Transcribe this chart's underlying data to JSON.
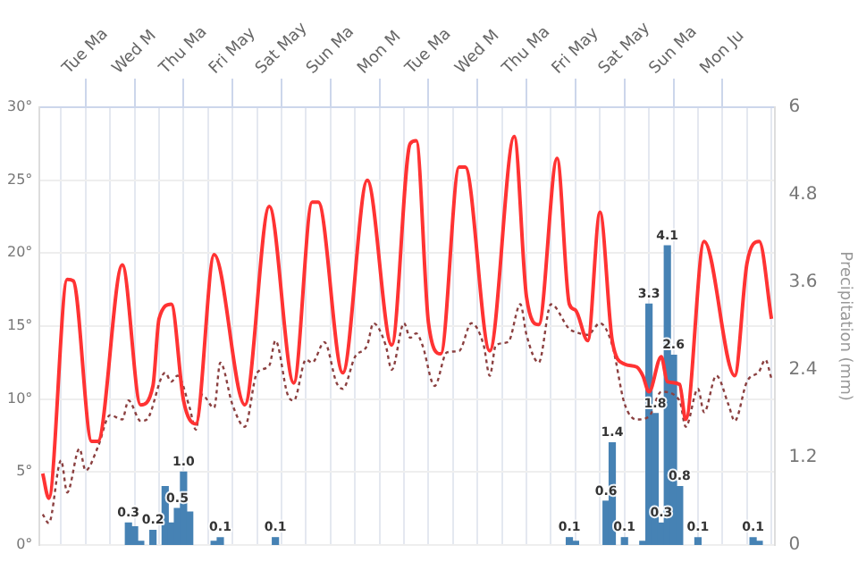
{
  "chart_data": {
    "type": "line",
    "y2label": "Precipitation (mm)",
    "grid": true,
    "legend": false,
    "marker": "none",
    "categories": [
      null,
      null,
      null,
      null,
      null,
      null,
      null,
      "Tue Ma",
      null,
      null,
      null,
      null,
      null,
      null,
      null,
      "Wed M",
      null,
      null,
      null,
      null,
      null,
      null,
      null,
      "Thu Ma",
      null,
      null,
      null,
      null,
      null,
      null,
      null,
      "Fri May",
      null,
      null,
      null,
      null,
      null,
      null,
      null,
      "Sat May",
      null,
      null,
      null,
      null,
      null,
      null,
      null,
      "Sun Ma",
      null,
      null,
      null,
      null,
      null,
      null,
      null,
      "Mon M",
      null,
      null,
      null,
      null,
      null,
      null,
      null,
      "Tue Ma",
      null,
      null,
      null,
      null,
      null,
      null,
      null,
      "Wed M",
      null,
      null,
      null,
      null,
      null,
      null,
      null,
      "Thu Ma",
      null,
      null,
      null,
      null,
      null,
      null,
      null,
      "Fri May",
      null,
      null,
      null,
      null,
      null,
      null,
      null,
      "Sat May",
      null,
      null,
      null,
      null,
      null,
      null,
      null,
      "Sun Ma",
      null,
      null,
      null,
      null,
      null,
      null,
      null,
      "Mon Ju",
      null,
      null,
      null,
      null,
      null,
      null,
      null,
      null
    ],
    "ylim": [
      0,
      30
    ],
    "yticks": [
      {
        "value": 0,
        "label": "0°"
      },
      {
        "value": 5,
        "label": "5°"
      },
      {
        "value": 10,
        "label": "10°"
      },
      {
        "value": 15,
        "label": "15°"
      },
      {
        "value": 20,
        "label": "20°"
      },
      {
        "value": 25,
        "label": "25°"
      },
      {
        "value": 30,
        "label": "30°"
      }
    ],
    "y2lim": [
      0,
      6
    ],
    "y2ticks": [
      0,
      1.2,
      2.4,
      3.6,
      4.8,
      6
    ],
    "series": [
      {
        "type": "bar",
        "axis": "y2",
        "color": "#4682b4",
        "values": [
          null,
          null,
          null,
          null,
          null,
          null,
          null,
          null,
          null,
          null,
          null,
          null,
          null,
          null,
          0.3,
          0.25,
          0.05,
          null,
          0.2,
          null,
          0.8,
          0.3,
          0.5,
          1.0,
          0.45,
          null,
          null,
          null,
          0.05,
          0.1,
          null,
          null,
          null,
          null,
          null,
          null,
          null,
          null,
          0.1,
          null,
          null,
          null,
          null,
          null,
          null,
          null,
          null,
          null,
          null,
          null,
          null,
          null,
          null,
          null,
          null,
          null,
          null,
          null,
          null,
          null,
          null,
          null,
          null,
          null,
          null,
          null,
          null,
          null,
          null,
          null,
          null,
          null,
          null,
          null,
          null,
          null,
          null,
          null,
          null,
          null,
          null,
          null,
          null,
          null,
          null,
          null,
          0.1,
          0.05,
          null,
          null,
          null,
          null,
          0.6,
          1.4,
          null,
          0.1,
          null,
          null,
          0.05,
          3.3,
          1.8,
          0.3,
          4.1,
          2.6,
          0.8,
          null,
          null,
          0.1,
          null,
          null,
          null,
          null,
          null,
          null,
          null,
          null,
          0.1,
          0.05,
          null,
          null
        ],
        "value_labels": [
          null,
          null,
          null,
          null,
          null,
          null,
          null,
          null,
          null,
          null,
          null,
          null,
          null,
          null,
          "0.3",
          null,
          null,
          null,
          "0.2",
          null,
          null,
          null,
          "0.5",
          "1.0",
          null,
          null,
          null,
          null,
          null,
          "0.1",
          null,
          null,
          null,
          null,
          null,
          null,
          null,
          null,
          "0.1",
          null,
          null,
          null,
          null,
          null,
          null,
          null,
          null,
          null,
          null,
          null,
          null,
          null,
          null,
          null,
          null,
          null,
          null,
          null,
          null,
          null,
          null,
          null,
          null,
          null,
          null,
          null,
          null,
          null,
          null,
          null,
          null,
          null,
          null,
          null,
          null,
          null,
          null,
          null,
          null,
          null,
          null,
          null,
          null,
          null,
          null,
          null,
          "0.1",
          null,
          null,
          null,
          null,
          null,
          "0.6",
          "1.4",
          null,
          "0.1",
          null,
          null,
          null,
          "3.3",
          "1.8",
          "0.3",
          "4.1",
          "2.6",
          "0.8",
          null,
          null,
          "0.1",
          null,
          null,
          null,
          null,
          null,
          null,
          null,
          null,
          "0.1",
          null,
          null,
          null
        ]
      },
      {
        "color": "#ff3333",
        "line_style": "solid",
        "values": [
          4.9,
          3.2,
          null,
          null,
          18.2,
          18.1,
          null,
          null,
          7.1,
          7.1,
          null,
          null,
          null,
          19.2,
          null,
          null,
          9.6,
          null,
          10.9,
          15.5,
          null,
          16.5,
          null,
          9.9,
          null,
          8.3,
          null,
          null,
          19.9,
          null,
          null,
          null,
          null,
          9.6,
          null,
          null,
          null,
          23.2,
          null,
          null,
          null,
          11.1,
          null,
          null,
          23.5,
          23.5,
          null,
          null,
          null,
          11.8,
          null,
          null,
          null,
          25.0,
          null,
          null,
          null,
          13.7,
          null,
          null,
          27.5,
          27.7,
          null,
          15.2,
          null,
          13.1,
          null,
          null,
          25.9,
          25.9,
          null,
          null,
          null,
          13.3,
          null,
          null,
          null,
          28.0,
          null,
          17.0,
          null,
          15.1,
          null,
          null,
          26.5,
          null,
          16.5,
          16.1,
          null,
          14.0,
          null,
          22.8,
          null,
          14.0,
          null,
          12.4,
          null,
          12.2,
          11.6,
          10.5,
          null,
          12.9,
          11.2,
          null,
          11.0,
          8.6,
          null,
          null,
          20.8,
          null,
          null,
          null,
          null,
          11.6,
          null,
          19.3,
          null,
          20.8,
          null,
          15.5
        ]
      },
      {
        "color": "#8b4040",
        "line_style": "dotted",
        "values": [
          2.1,
          1.5,
          null,
          5.8,
          3.6,
          null,
          6.6,
          5.1,
          null,
          6.7,
          null,
          8.9,
          null,
          8.6,
          9.9,
          null,
          8.5,
          8.6,
          null,
          null,
          11.8,
          11.2,
          11.6,
          null,
          9.4,
          7.9,
          10.3,
          null,
          9.4,
          12.5,
          null,
          9.6,
          null,
          8.1,
          null,
          11.8,
          null,
          12.3,
          14.0,
          null,
          10.3,
          9.9,
          null,
          12.7,
          12.5,
          null,
          13.9,
          null,
          11.1,
          10.7,
          null,
          12.9,
          null,
          13.7,
          15.2,
          null,
          13.7,
          12.0,
          null,
          15.2,
          14.2,
          14.5,
          13.7,
          null,
          10.9,
          null,
          13.2,
          null,
          13.3,
          null,
          15.2,
          null,
          13.7,
          11.6,
          13.7,
          null,
          13.9,
          null,
          16.5,
          14.4,
          null,
          12.5,
          null,
          16.5,
          null,
          null,
          14.8,
          14.6,
          null,
          14.4,
          null,
          15.2,
          null,
          13.7,
          null,
          9.7,
          null,
          8.6,
          null,
          8.8,
          null,
          10.5,
          null,
          null,
          9.9,
          8.1,
          null,
          10.7,
          9.1,
          null,
          11.6,
          null,
          9.6,
          8.5,
          null,
          11.2,
          null,
          11.9,
          12.7,
          11.4
        ]
      }
    ]
  }
}
